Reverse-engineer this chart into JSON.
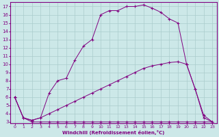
{
  "xlabel": "Windchill (Refroidissement éolien,°C)",
  "bg_color": "#cce8e8",
  "line_color": "#800080",
  "grid_color": "#aacccc",
  "xlim_min": -0.5,
  "xlim_max": 23.5,
  "ylim_min": 2.8,
  "ylim_max": 17.5,
  "yticks": [
    3,
    4,
    5,
    6,
    7,
    8,
    9,
    10,
    11,
    12,
    13,
    14,
    15,
    16,
    17
  ],
  "xticks": [
    0,
    1,
    2,
    3,
    4,
    5,
    6,
    7,
    8,
    9,
    10,
    11,
    12,
    13,
    14,
    15,
    16,
    17,
    18,
    19,
    20,
    21,
    22,
    23
  ],
  "curve1_x": [
    0,
    1,
    2,
    3,
    4,
    5,
    6,
    7,
    8,
    9,
    10,
    11,
    12,
    13,
    14,
    15,
    16,
    17,
    18,
    19,
    20,
    21,
    22,
    23
  ],
  "curve1_y": [
    6.0,
    3.5,
    3.0,
    3.0,
    3.0,
    3.0,
    3.0,
    3.0,
    3.0,
    3.0,
    3.0,
    3.0,
    3.0,
    3.0,
    3.0,
    3.0,
    3.0,
    3.0,
    3.0,
    3.0,
    3.0,
    3.0,
    3.0,
    3.0
  ],
  "curve2_x": [
    0,
    1,
    2,
    3,
    4,
    5,
    6,
    7,
    8,
    9,
    10,
    11,
    12,
    13,
    14,
    15,
    16,
    17,
    18,
    19,
    20,
    21,
    22,
    23
  ],
  "curve2_y": [
    6.0,
    3.5,
    3.2,
    3.5,
    4.0,
    4.5,
    5.0,
    5.5,
    6.0,
    6.5,
    7.0,
    7.5,
    8.0,
    8.5,
    9.0,
    9.5,
    9.8,
    10.0,
    10.2,
    10.3,
    10.0,
    7.0,
    3.5,
    3.0
  ],
  "curve3_x": [
    0,
    1,
    2,
    3,
    4,
    5,
    6,
    7,
    8,
    9,
    10,
    11,
    12,
    13,
    14,
    15,
    16,
    17,
    18,
    19,
    20,
    21,
    22,
    23
  ],
  "curve3_y": [
    6.0,
    3.5,
    3.2,
    3.5,
    6.5,
    8.0,
    8.3,
    10.5,
    12.2,
    13.0,
    16.0,
    16.5,
    16.5,
    17.0,
    17.0,
    17.2,
    16.8,
    16.3,
    15.5,
    15.0,
    10.0,
    7.0,
    3.8,
    3.0
  ]
}
